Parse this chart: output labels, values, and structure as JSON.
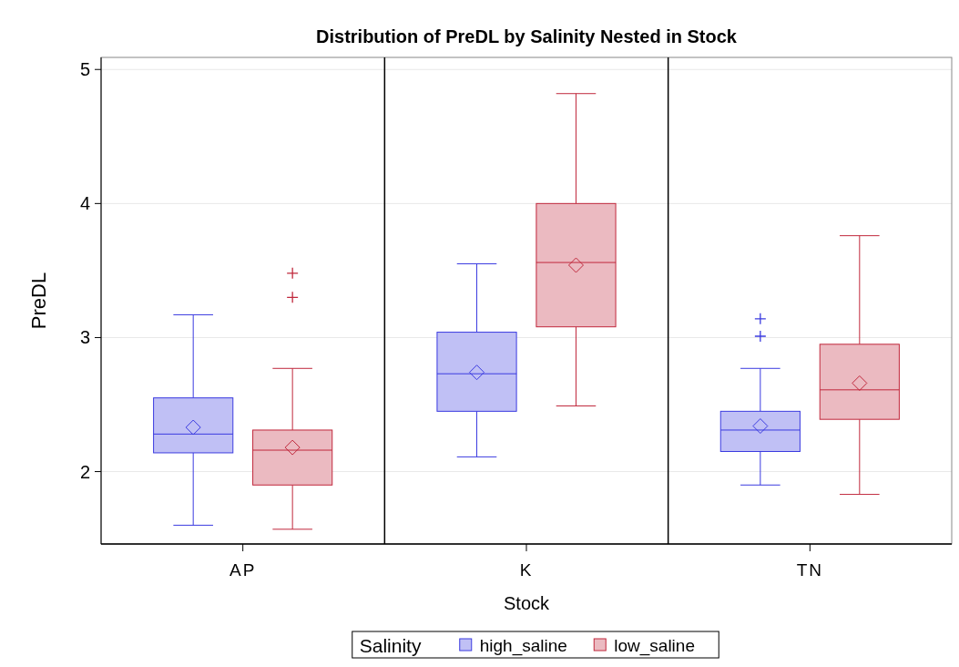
{
  "chart_data": {
    "type": "box",
    "title": "Distribution of PreDL by Salinity Nested in Stock",
    "xlabel": "Stock",
    "ylabel": "PreDL",
    "legend_title": "Salinity",
    "categories": [
      "AP",
      "K",
      "TN"
    ],
    "ylim": [
      1.46,
      5.09
    ],
    "yticks": [
      2,
      3,
      4,
      5
    ],
    "grid": "y",
    "legend": "bottom",
    "marker": "diamond",
    "series": [
      {
        "name": "high_saline",
        "color": "#3b3be0",
        "boxes": [
          {
            "low": 1.6,
            "q1": 2.14,
            "median": 2.28,
            "q3": 2.55,
            "high": 3.17,
            "mean": 2.33
          },
          {
            "low": 2.11,
            "q1": 2.45,
            "median": 2.73,
            "q3": 3.04,
            "high": 3.55,
            "mean": 2.74
          },
          {
            "low": 1.9,
            "q1": 2.15,
            "median": 2.31,
            "q3": 2.45,
            "high": 2.77,
            "mean": 2.34,
            "outliers": [
              3.01,
              3.14
            ]
          }
        ]
      },
      {
        "name": "low_saline",
        "color": "#c0283c",
        "boxes": [
          {
            "low": 1.57,
            "q1": 1.9,
            "median": 2.16,
            "q3": 2.31,
            "high": 2.77,
            "mean": 2.18,
            "outliers": [
              3.3,
              3.48
            ]
          },
          {
            "low": 2.49,
            "q1": 3.08,
            "median": 3.56,
            "q3": 4.0,
            "high": 4.82,
            "mean": 3.54
          },
          {
            "low": 1.83,
            "q1": 2.39,
            "median": 2.61,
            "q3": 2.95,
            "high": 3.76,
            "mean": 2.66
          }
        ]
      }
    ]
  }
}
